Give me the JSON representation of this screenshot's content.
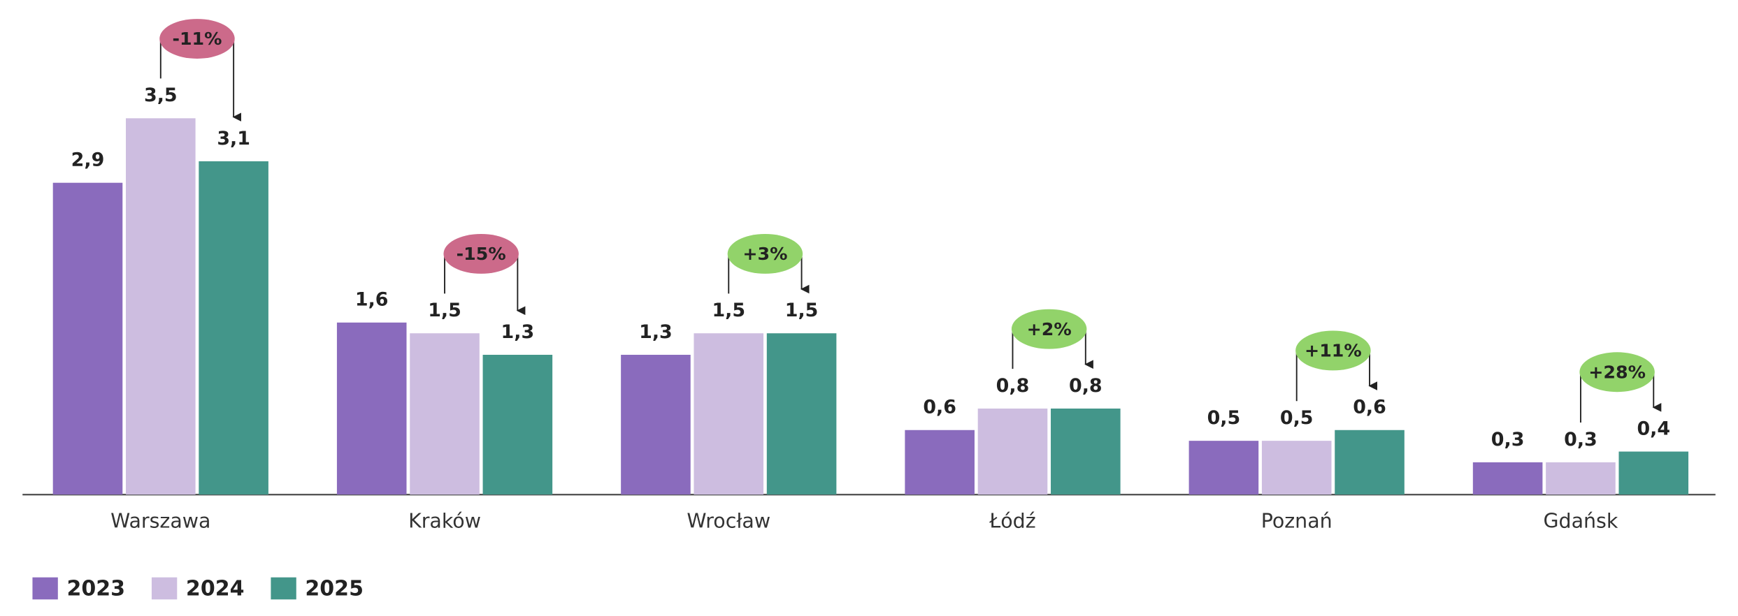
{
  "chart_data": {
    "type": "bar",
    "categories": [
      "Warszawa",
      "Kraków",
      "Wrocław",
      "Łódź",
      "Poznań",
      "Gdańsk"
    ],
    "series": [
      {
        "name": "2023",
        "color": "#8a6bbd",
        "values": [
          2.9,
          1.6,
          1.3,
          0.6,
          0.5,
          0.3
        ],
        "value_labels": [
          "2,9",
          "1,6",
          "1,3",
          "0,6",
          "0,5",
          "0,3"
        ]
      },
      {
        "name": "2024",
        "color": "#cdbde0",
        "values": [
          3.5,
          1.5,
          1.5,
          0.8,
          0.5,
          0.3
        ],
        "value_labels": [
          "3,5",
          "1,5",
          "1,5",
          "0,8",
          "0,5",
          "0,3"
        ]
      },
      {
        "name": "2025",
        "color": "#43968a",
        "values": [
          3.1,
          1.3,
          1.5,
          0.8,
          0.6,
          0.4
        ],
        "value_labels": [
          "3,1",
          "1,3",
          "1,5",
          "0,8",
          "0,6",
          "0,4"
        ]
      }
    ],
    "annotations": [
      {
        "text": "-11%",
        "color": "#cc6a8a"
      },
      {
        "text": "-15%",
        "color": "#cc6a8a"
      },
      {
        "text": "+3%",
        "color": "#92d36a"
      },
      {
        "text": "+2%",
        "color": "#92d36a"
      },
      {
        "text": "+11%",
        "color": "#92d36a"
      },
      {
        "text": "+28%",
        "color": "#92d36a"
      }
    ],
    "ylim": [
      0,
      4.6
    ],
    "legend": "bottom-left"
  }
}
